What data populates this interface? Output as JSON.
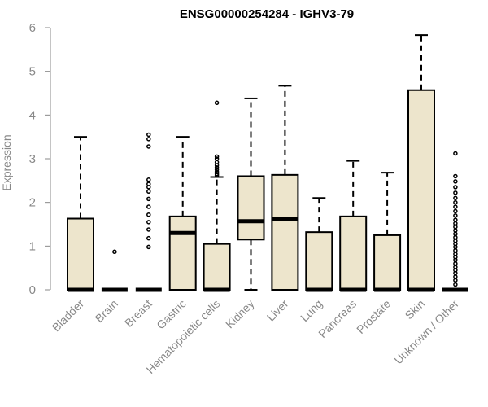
{
  "chart_data": {
    "type": "boxplot",
    "title": "ENSG00000254284 - IGHV3-79",
    "ylabel": "Expression",
    "xlabel": "",
    "ylim": [
      0,
      6
    ],
    "yticks": [
      "0",
      "1",
      "2",
      "3",
      "4",
      "5",
      "6"
    ],
    "box_fill": "#ede5cc",
    "categories": [
      "Bladder",
      "Brain",
      "Breast",
      "Gastric",
      "Hematopoietic cells",
      "Kidney",
      "Liver",
      "Lung",
      "Pancreas",
      "Prostate",
      "Skin",
      "Unknown / Other"
    ],
    "boxes": [
      {
        "q1": 0,
        "median": 0,
        "q3": 1.63,
        "lower": 0,
        "upper": 3.5,
        "outliers": []
      },
      {
        "q1": 0,
        "median": 0,
        "q3": 0,
        "lower": 0,
        "upper": 0,
        "outliers": [
          0.87
        ]
      },
      {
        "q1": 0,
        "median": 0,
        "q3": 0,
        "lower": 0,
        "upper": 0,
        "outliers": [
          0.98,
          1.18,
          1.38,
          1.55,
          1.72,
          1.9,
          2.08,
          2.25,
          2.35,
          2.42,
          2.52,
          3.28,
          3.45,
          3.55
        ]
      },
      {
        "q1": 0,
        "median": 1.3,
        "q3": 1.68,
        "lower": 0,
        "upper": 3.5,
        "outliers": []
      },
      {
        "q1": 0,
        "median": 0,
        "q3": 1.05,
        "lower": 0,
        "upper": 2.58,
        "outliers": [
          2.62,
          2.65,
          2.7,
          2.75,
          2.8,
          2.85,
          2.92,
          3.0,
          3.05,
          4.28
        ]
      },
      {
        "q1": 1.15,
        "median": 1.57,
        "q3": 2.6,
        "lower": 0,
        "upper": 4.38,
        "outliers": []
      },
      {
        "q1": 0,
        "median": 1.62,
        "q3": 2.63,
        "lower": 0,
        "upper": 4.67,
        "outliers": []
      },
      {
        "q1": 0,
        "median": 0,
        "q3": 1.32,
        "lower": 0,
        "upper": 2.1,
        "outliers": []
      },
      {
        "q1": 0,
        "median": 0,
        "q3": 1.68,
        "lower": 0,
        "upper": 2.95,
        "outliers": []
      },
      {
        "q1": 0,
        "median": 0,
        "q3": 1.25,
        "lower": 0,
        "upper": 2.68,
        "outliers": []
      },
      {
        "q1": 0,
        "median": 0,
        "q3": 4.57,
        "lower": 0,
        "upper": 5.83,
        "outliers": []
      },
      {
        "q1": 0,
        "median": 0,
        "q3": 0,
        "lower": 0,
        "upper": 0,
        "outliers": [
          0.12,
          0.22,
          0.3,
          0.38,
          0.45,
          0.52,
          0.6,
          0.68,
          0.75,
          0.82,
          0.9,
          0.98,
          1.05,
          1.12,
          1.2,
          1.28,
          1.36,
          1.44,
          1.52,
          1.6,
          1.7,
          1.8,
          1.9,
          2.0,
          2.1,
          2.22,
          2.35,
          2.48,
          2.6,
          3.12
        ]
      }
    ]
  }
}
